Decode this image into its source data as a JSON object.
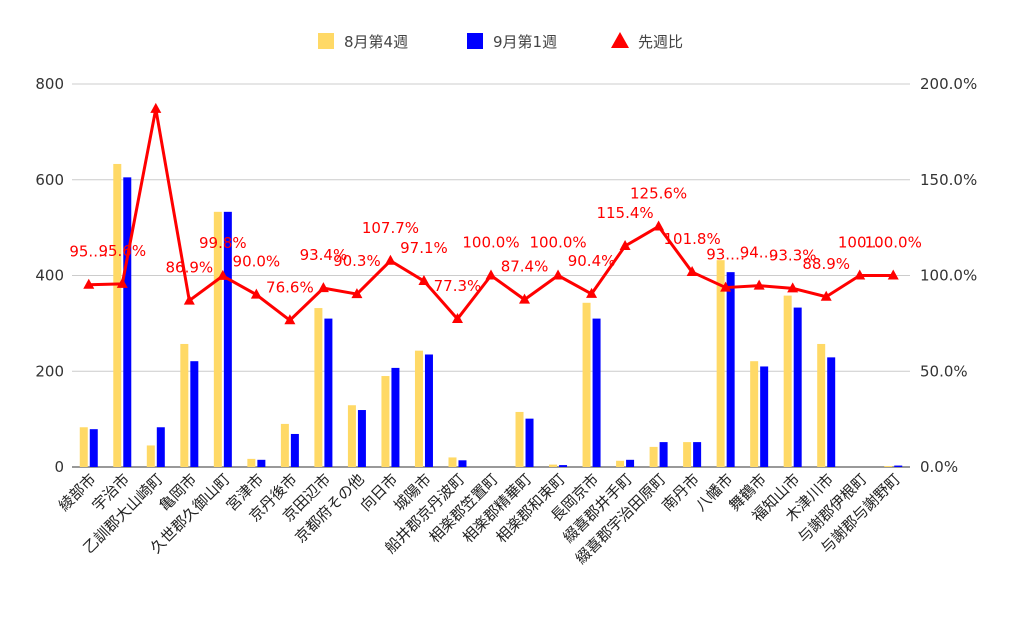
{
  "chart_data": {
    "type": "bar",
    "categories": [
      "綾部市",
      "宇治市",
      "乙訓郡大山崎町",
      "亀岡市",
      "久世郡久御山町",
      "宮津市",
      "京丹後市",
      "京田辺市",
      "京都府その他",
      "向日市",
      "城陽市",
      "船井郡京丹波町",
      "相楽郡笠置町",
      "相楽郡精華町",
      "相楽郡和束町",
      "長岡京市",
      "綴喜郡井手町",
      "綴喜郡宇治田原町",
      "南丹市",
      "八幡市",
      "舞鶴市",
      "福知山市",
      "木津川市",
      "与謝郡伊根町",
      "与謝郡与謝野町"
    ],
    "series": [
      {
        "name": "8月第4週",
        "type": "bar",
        "axis": "left",
        "color": "#ffd966",
        "values": [
          83,
          633,
          45,
          257,
          533,
          17,
          90,
          332,
          129,
          190,
          243,
          20,
          0,
          115,
          5,
          343,
          13,
          42,
          52,
          432,
          221,
          358,
          257,
          0,
          2
        ]
      },
      {
        "name": "9月第1週",
        "type": "bar",
        "axis": "left",
        "color": "#0000ff",
        "values": [
          79,
          605,
          83,
          221,
          533,
          15,
          69,
          310,
          119,
          207,
          235,
          14,
          0,
          101,
          4,
          310,
          15,
          52,
          52,
          407,
          210,
          333,
          229,
          0,
          3
        ]
      },
      {
        "name": "先週比",
        "type": "line",
        "axis": "right",
        "color": "#ff0000",
        "values": [
          95.2,
          95.6,
          187,
          86.9,
          99.8,
          90.0,
          76.6,
          93.4,
          90.3,
          107.7,
          97.1,
          77.3,
          100.0,
          87.4,
          100.0,
          90.4,
          115.4,
          125.6,
          101.8,
          93.7,
          94.7,
          93.3,
          88.9,
          100.0,
          100.0
        ],
        "labels": [
          "95.…",
          "95.6%",
          "",
          "86.9%",
          "99.8%",
          "90.0%",
          "76.6%",
          "93.4%",
          "90.3%",
          "107.7%",
          "97.1%",
          "77.3%",
          "100.0%",
          "87.4%",
          "100.0%",
          "90.4%",
          "115.4%",
          "125.6%",
          "101.8%",
          "93.…",
          "94.…",
          "93.3%",
          "88.9%",
          "100…",
          "100.0%"
        ]
      }
    ],
    "left_axis": {
      "ylim": [
        0,
        800
      ],
      "ticks": [
        "0",
        "200",
        "400",
        "600",
        "800"
      ]
    },
    "right_axis": {
      "ylim": [
        0,
        200
      ],
      "ticks": [
        "0.0%",
        "50.0%",
        "100.0%",
        "150.0%",
        "200.0%"
      ]
    },
    "grid": true,
    "legend": "top-center"
  }
}
